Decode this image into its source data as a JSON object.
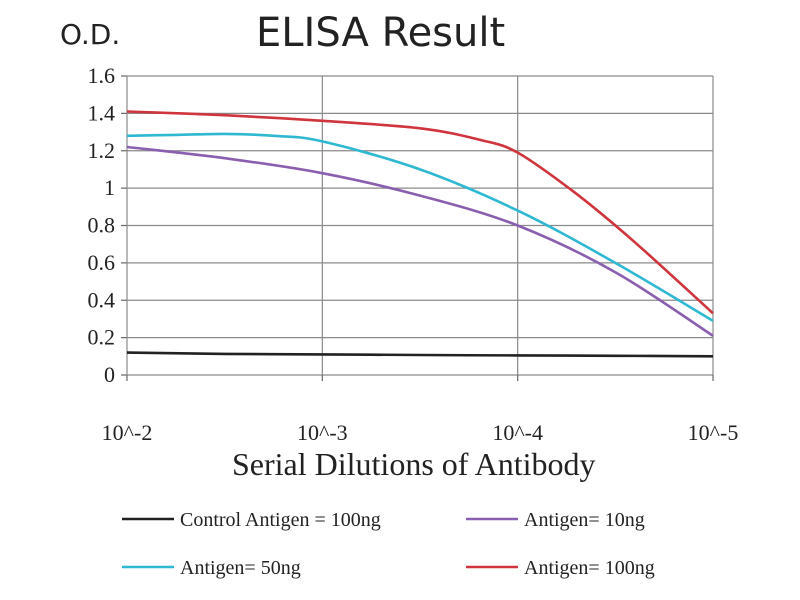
{
  "chart_data": {
    "type": "line",
    "title": "ELISA Result",
    "ylabel": "O.D.",
    "xlabel": "Serial Dilutions of Antibody",
    "x_categories": [
      "10^-2",
      "10^-3",
      "10^-4",
      "10^-5"
    ],
    "y_ticks": [
      "0",
      "0.2",
      "0.4",
      "0.6",
      "0.8",
      "1",
      "1.2",
      "1.4",
      "1.6"
    ],
    "ylim": [
      0,
      1.6
    ],
    "grid": true,
    "legend_position": "bottom",
    "series": [
      {
        "name": "Control Antigen = 100ng",
        "color": "#222222",
        "points": [
          [
            0,
            0.12
          ],
          [
            0.5,
            0.113
          ],
          [
            1,
            0.11
          ],
          [
            1.5,
            0.107
          ],
          [
            2,
            0.105
          ],
          [
            2.5,
            0.103
          ],
          [
            3,
            0.1
          ]
        ]
      },
      {
        "name": "Antigen= 10ng",
        "color": "#8b5fb0",
        "points": [
          [
            0,
            1.22
          ],
          [
            0.5,
            1.16
          ],
          [
            1,
            1.08
          ],
          [
            1.5,
            0.96
          ],
          [
            2,
            0.8
          ],
          [
            2.5,
            0.55
          ],
          [
            3,
            0.21
          ]
        ]
      },
      {
        "name": "Antigen= 50ng",
        "color": "#2fb8d2",
        "points": [
          [
            0,
            1.28
          ],
          [
            0.25,
            1.285
          ],
          [
            0.5,
            1.29
          ],
          [
            0.75,
            1.28
          ],
          [
            1,
            1.25
          ],
          [
            1.5,
            1.1
          ],
          [
            2,
            0.88
          ],
          [
            2.5,
            0.6
          ],
          [
            3,
            0.29
          ]
        ]
      },
      {
        "name": "Antigen= 100ng",
        "color": "#d0343c",
        "points": [
          [
            0,
            1.41
          ],
          [
            0.5,
            1.39
          ],
          [
            1,
            1.36
          ],
          [
            1.5,
            1.32
          ],
          [
            1.8,
            1.26
          ],
          [
            2,
            1.19
          ],
          [
            2.3,
            0.97
          ],
          [
            2.6,
            0.71
          ],
          [
            3,
            0.33
          ]
        ]
      }
    ]
  }
}
